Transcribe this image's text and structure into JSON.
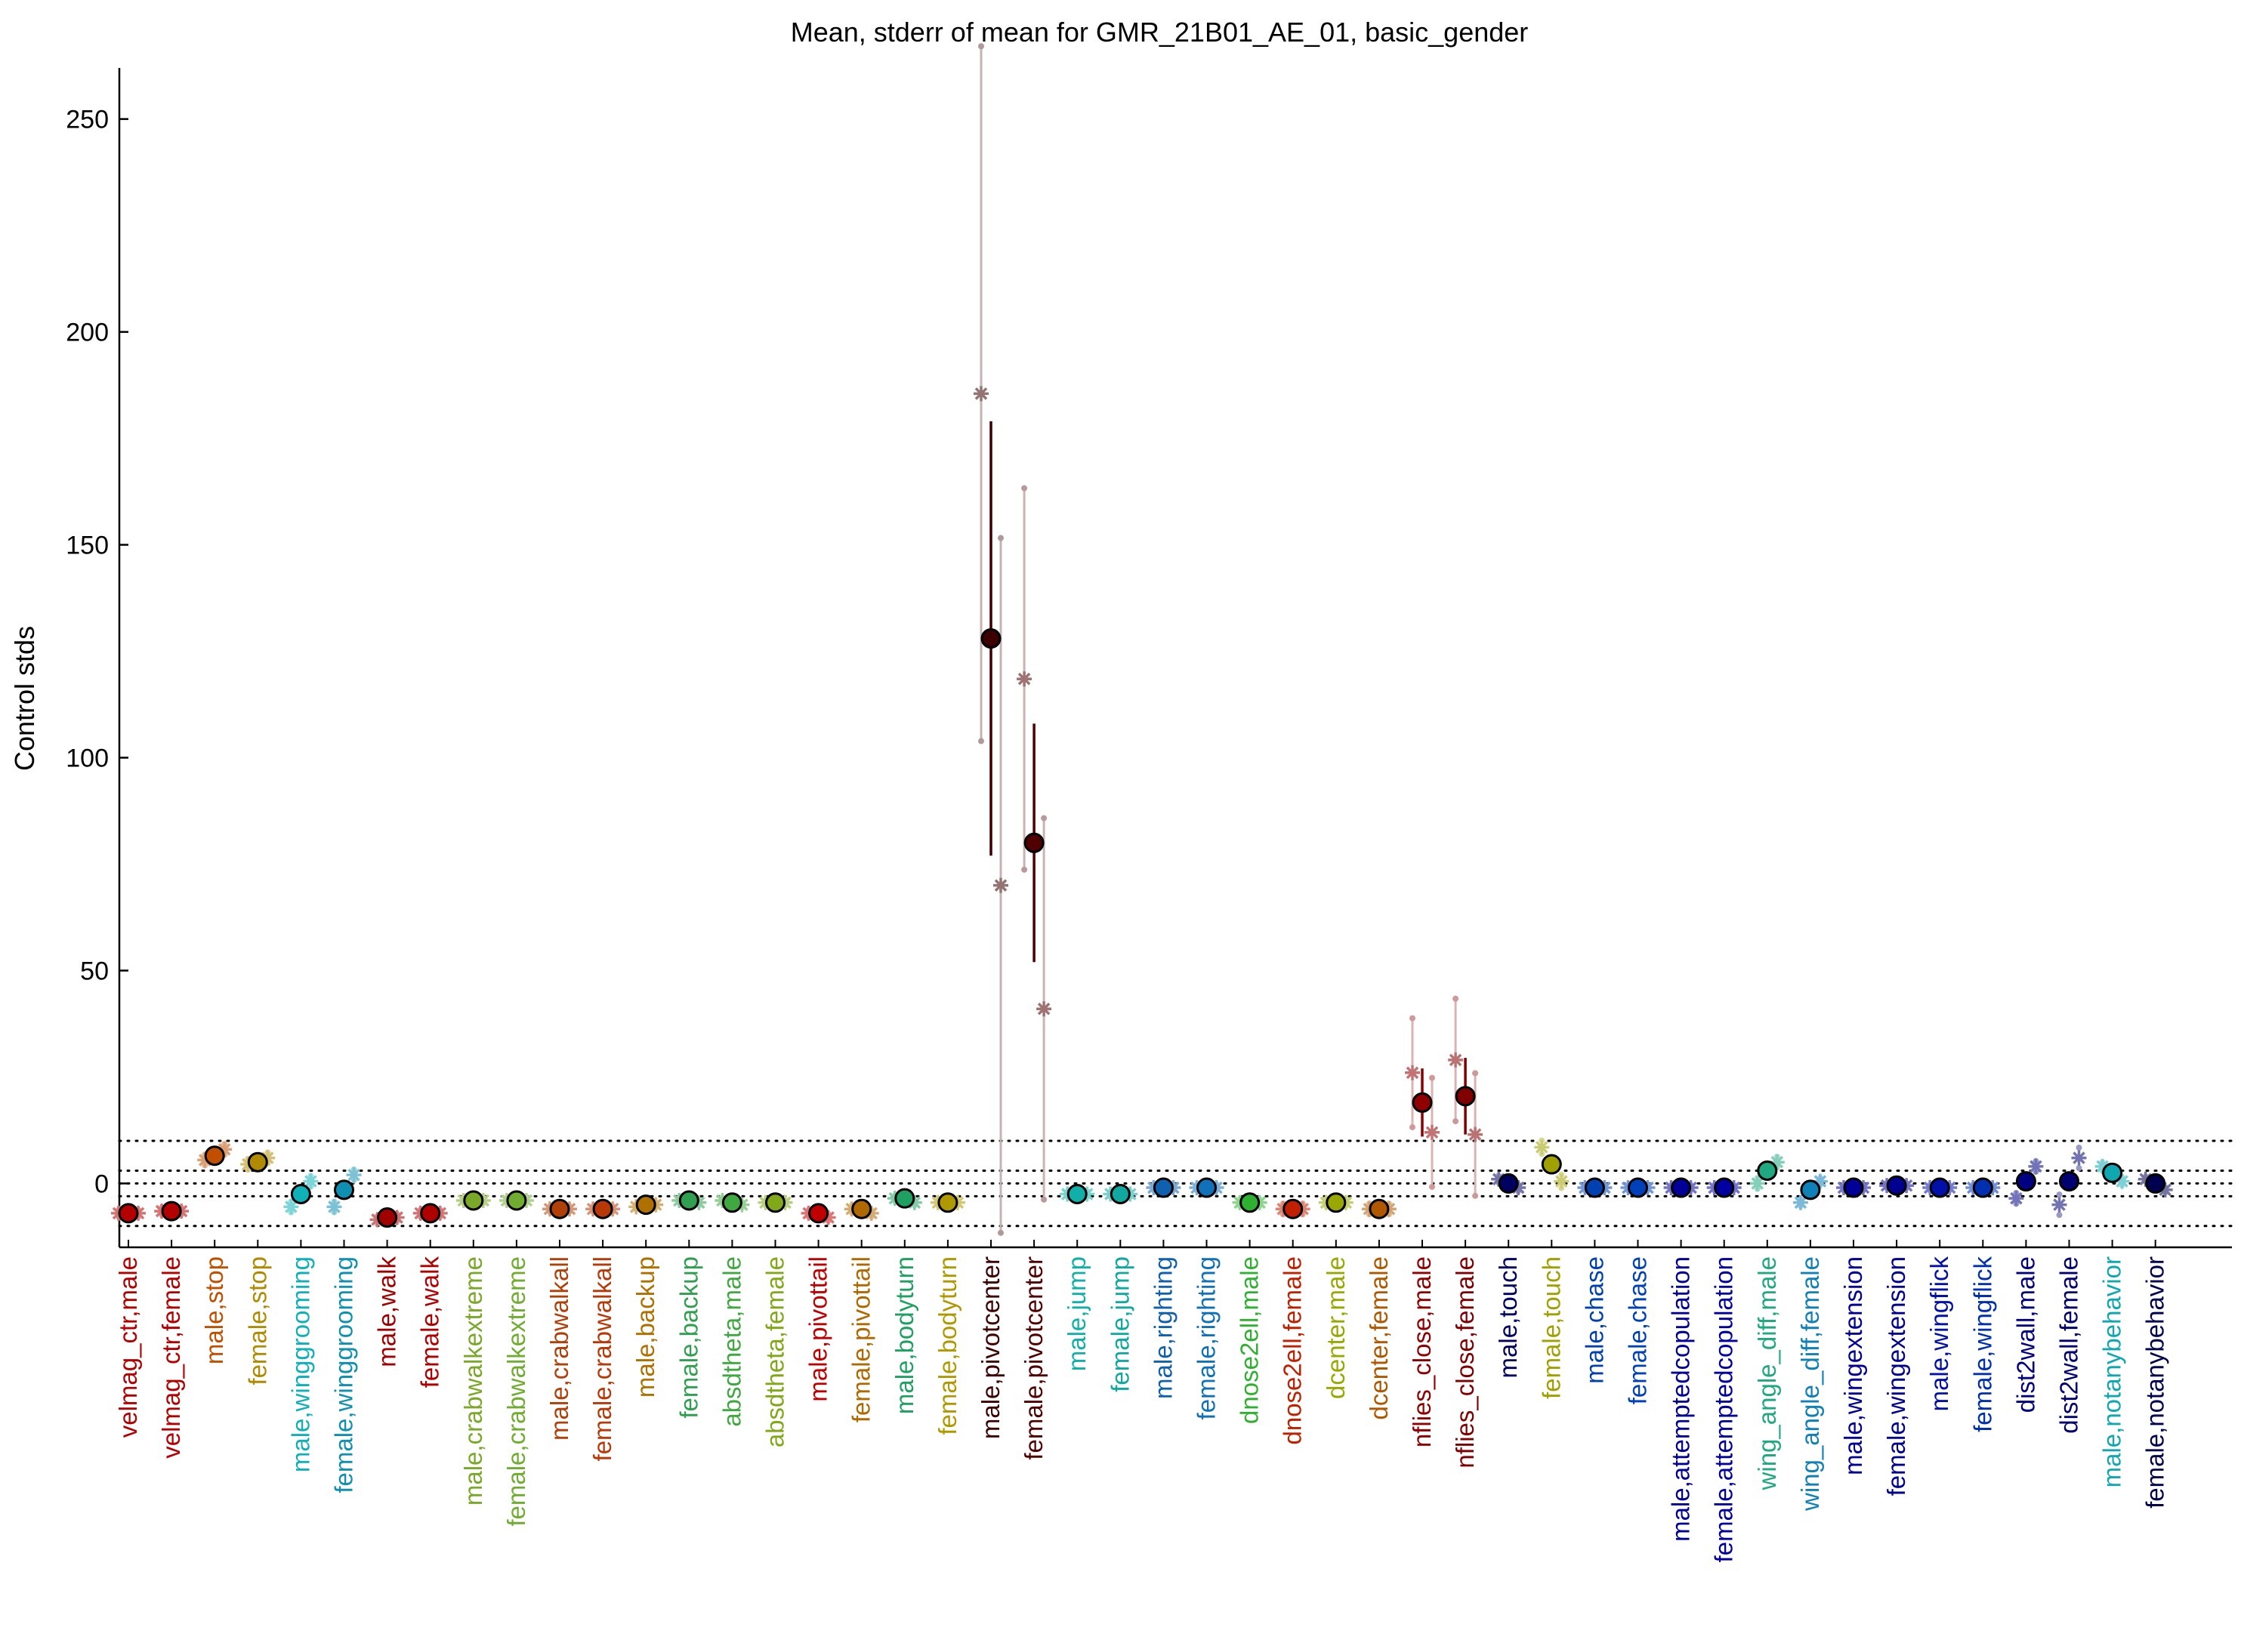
{
  "chart_data": {
    "type": "scatter",
    "title": "Mean, stderr of mean for GMR_21B01_AE_01, basic_gender",
    "xlabel": "",
    "ylabel": "Control stds",
    "ylim": [
      -15,
      262
    ],
    "yticks": [
      0,
      50,
      100,
      150,
      200,
      250
    ],
    "reference_lines": [
      -10,
      -3,
      0,
      3,
      10
    ],
    "grid": false,
    "legend": "none",
    "categories": [
      "velmag_ctr,male",
      "velmag_ctr,female",
      "male,stop",
      "female,stop",
      "male,winggrooming",
      "female,winggrooming",
      "male,walk",
      "female,walk",
      "male,crabwalkextreme",
      "female,crabwalkextreme",
      "male,crabwalkall",
      "female,crabwalkall",
      "male,backup",
      "female,backup",
      "absdtheta,male",
      "absdtheta,female",
      "male,pivottail",
      "female,pivottail",
      "male,bodyturn",
      "female,bodyturn",
      "male,pivotcenter",
      "female,pivotcenter",
      "male,jump",
      "female,jump",
      "male,righting",
      "female,righting",
      "dnose2ell,male",
      "dnose2ell,female",
      "dcenter,male",
      "dcenter,female",
      "nflies_close,male",
      "nflies_close,female",
      "male,touch",
      "female,touch",
      "male,chase",
      "female,chase",
      "male,attemptedcopulation",
      "female,attemptedcopulation",
      "wing_angle_diff,male",
      "wing_angle_diff,female",
      "male,wingextension",
      "female,wingextension",
      "male,wingflick",
      "female,wingflick",
      "dist2wall,male",
      "dist2wall,female",
      "male,notanybehavior",
      "female,notanybehavior"
    ],
    "colors": [
      "#b30000",
      "#b30000",
      "#c05000",
      "#b08a00",
      "#10b0b8",
      "#1090b0",
      "#a00000",
      "#b00000",
      "#7aa828",
      "#6fac30",
      "#b04008",
      "#b83808",
      "#b07000",
      "#30a050",
      "#40a840",
      "#80a818",
      "#c00000",
      "#b06800",
      "#20a060",
      "#b09800",
      "#3c0000",
      "#500000",
      "#10b0a8",
      "#10a8a0",
      "#1060b0",
      "#1070b8",
      "#30b030",
      "#c02000",
      "#98a800",
      "#b05800",
      "#900000",
      "#800000",
      "#000060",
      "#a0a000",
      "#0040b0",
      "#0040b8",
      "#000098",
      "#0000a0",
      "#20a880",
      "#1080b8",
      "#000098",
      "#000090",
      "#0010a8",
      "#0030b0",
      "#000080",
      "#000070",
      "#10a8b0",
      "#000050"
    ],
    "means": [
      -7,
      -6.5,
      6.5,
      5,
      -2.5,
      -1.5,
      -8,
      -7,
      -4,
      -4,
      -6,
      -6,
      -5,
      -4,
      -4.5,
      -4.5,
      -7,
      -6,
      -3.5,
      -4.5,
      128,
      80,
      -2.5,
      -2.5,
      -1,
      -1,
      -4.5,
      -6,
      -4.5,
      -6,
      19,
      20.5,
      0,
      4.5,
      -1,
      -1,
      -1,
      -1,
      3,
      -1.5,
      -1,
      -0.5,
      -1,
      -1,
      0.5,
      0.5,
      2.5,
      0
    ],
    "stderr": [
      0.5,
      0.5,
      0.8,
      0.8,
      0.8,
      0.8,
      0.5,
      0.5,
      0.4,
      0.4,
      0.4,
      0.4,
      0.4,
      0.4,
      0.4,
      0.4,
      0.5,
      0.5,
      0.4,
      0.4,
      51,
      28,
      0.4,
      0.4,
      0.3,
      0.3,
      0.5,
      0.8,
      0.5,
      0.8,
      8,
      9,
      0.5,
      1,
      0.3,
      0.3,
      0.3,
      0.3,
      0.8,
      0.5,
      0.3,
      0.3,
      0.3,
      0.3,
      0.8,
      1.5,
      0.6,
      0.3
    ],
    "replicates": [
      [
        -7,
        -7
      ],
      [
        -6.5,
        -6.5
      ],
      [
        5.5,
        8
      ],
      [
        4.5,
        6
      ],
      [
        -5.5,
        0.5
      ],
      [
        -5.5,
        2
      ],
      [
        -8.5,
        -8
      ],
      [
        -7,
        -7
      ],
      [
        -4,
        -4
      ],
      [
        -4,
        -4
      ],
      [
        -6,
        -6
      ],
      [
        -6,
        -6
      ],
      [
        -5.5,
        -5
      ],
      [
        -4,
        -4.5
      ],
      [
        -4,
        -5
      ],
      [
        -4.5,
        -4.5
      ],
      [
        -7,
        -8
      ],
      [
        -6,
        -7
      ],
      [
        -3.5,
        -4.5
      ],
      [
        -4.5,
        -4.5
      ],
      [
        185.5,
        70
      ],
      [
        118.5,
        41
      ],
      [
        -2.5,
        -2.5
      ],
      [
        -2.5,
        -2.5
      ],
      [
        -1,
        -1
      ],
      [
        -1,
        -1
      ],
      [
        -4.5,
        -4.5
      ],
      [
        -6,
        -6
      ],
      [
        -4.5,
        -4.5
      ],
      [
        -6,
        -6
      ],
      [
        26,
        12
      ],
      [
        29,
        11.5
      ],
      [
        1,
        -1
      ],
      [
        8.5,
        0.5
      ],
      [
        -1,
        -1
      ],
      [
        -1,
        -1
      ],
      [
        -1,
        -1
      ],
      [
        -1,
        -1
      ],
      [
        0,
        5
      ],
      [
        -4.5,
        0.5
      ],
      [
        -1,
        -1
      ],
      [
        -0.5,
        -0.5
      ],
      [
        -1,
        -1
      ],
      [
        -1,
        -1
      ],
      [
        -3.5,
        4
      ],
      [
        -5,
        6
      ],
      [
        4,
        0.5
      ],
      [
        1,
        -1.5
      ]
    ]
  }
}
